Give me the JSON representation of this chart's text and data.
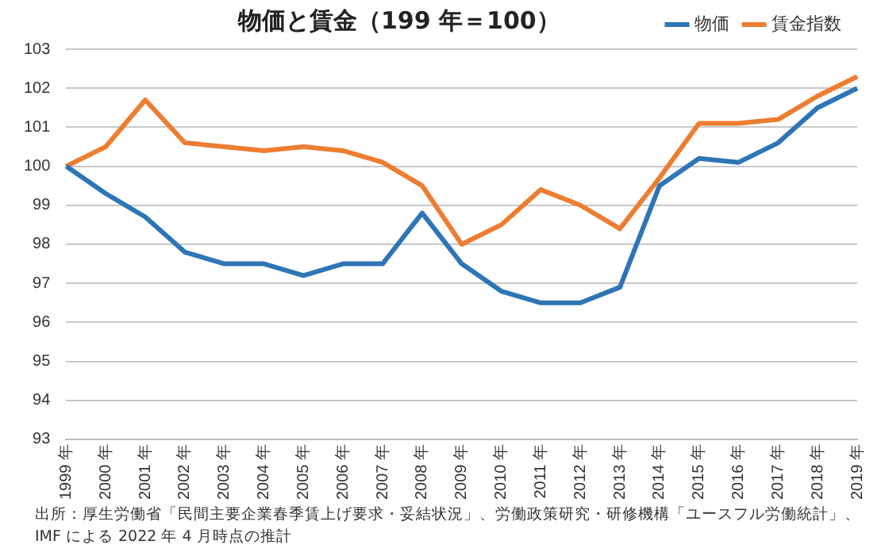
{
  "chart_data": {
    "type": "line",
    "title": "物価と賃金（199 年＝100）",
    "categories": [
      "1999 年",
      "2000 年",
      "2001 年",
      "2002 年",
      "2003 年",
      "2004 年",
      "2005 年",
      "2006 年",
      "2007 年",
      "2008 年",
      "2009 年",
      "2010 年",
      "2011 年",
      "2012 年",
      "2013 年",
      "2014 年",
      "2015 年",
      "2016 年",
      "2017 年",
      "2018 年",
      "2019 年"
    ],
    "series": [
      {
        "name": "物価",
        "color": "#2e75b6",
        "values": [
          100,
          99.3,
          98.7,
          97.8,
          97.5,
          97.5,
          97.2,
          97.5,
          97.5,
          98.8,
          97.5,
          96.8,
          96.5,
          96.5,
          96.9,
          99.5,
          100.2,
          100.1,
          100.6,
          101.5,
          102.0
        ]
      },
      {
        "name": "賃金指数",
        "color": "#ed7d31",
        "values": [
          100,
          100.5,
          101.7,
          100.6,
          100.5,
          100.4,
          100.5,
          100.4,
          100.1,
          99.5,
          98.0,
          98.5,
          99.4,
          99.0,
          98.4,
          99.7,
          101.1,
          101.1,
          101.2,
          101.8,
          102.3
        ]
      }
    ],
    "ylim": [
      93,
      103
    ],
    "yticks": [
      93,
      94,
      95,
      96,
      97,
      98,
      99,
      100,
      101,
      102,
      103
    ],
    "grid": "y",
    "legend": "top right",
    "marker": "none",
    "line_style": "solid",
    "annotations": [
      "出所：厚生労働省「民間主要企業春季賃上げ要求・妥結状況」、労働政策研究・研修機構「ユースフル労働統計」、\nIMF による 2022 年 4 月時点の推計"
    ]
  }
}
